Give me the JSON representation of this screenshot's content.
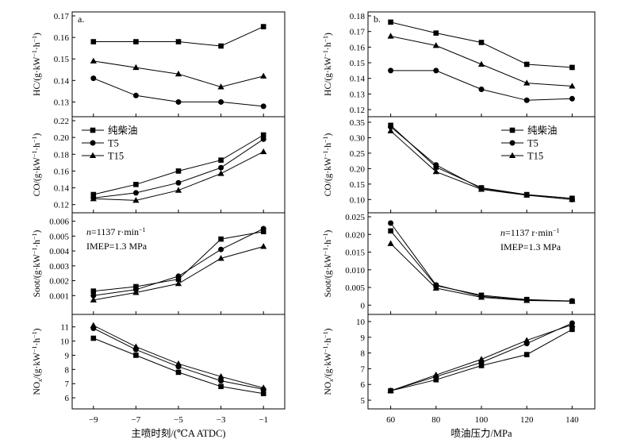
{
  "chart_data": [
    {
      "type": "line",
      "panel": "a",
      "row": 0,
      "panel_label": "a.",
      "ylabel": "HC/(g·kW⁻¹·h⁻¹)",
      "x": [
        -9,
        -7,
        -5,
        -3,
        -1
      ],
      "xlim": [
        -10,
        0
      ],
      "ylim": [
        0.125,
        0.17
      ],
      "yticks": [
        0.13,
        0.14,
        0.15,
        0.16,
        0.17
      ],
      "ytick_labels": [
        "0.13",
        "0.14",
        "0.15",
        "0.16",
        "0.17"
      ],
      "series": [
        {
          "name": "纯柴油",
          "marker": "square",
          "values": [
            0.158,
            0.158,
            0.158,
            0.156,
            0.165
          ]
        },
        {
          "name": "T5",
          "marker": "circle",
          "values": [
            0.141,
            0.133,
            0.13,
            0.13,
            0.128
          ]
        },
        {
          "name": "T15",
          "marker": "triangle",
          "values": [
            0.149,
            0.146,
            0.143,
            0.137,
            0.142
          ]
        }
      ]
    },
    {
      "type": "line",
      "panel": "a",
      "row": 1,
      "ylabel": "CO/(g·kW⁻¹·h⁻¹)",
      "x": [
        -9,
        -7,
        -5,
        -3,
        -1
      ],
      "xlim": [
        -10,
        0
      ],
      "ylim": [
        0.115,
        0.22
      ],
      "yticks": [
        0.12,
        0.14,
        0.16,
        0.18,
        0.2,
        0.22
      ],
      "ytick_labels": [
        "0.12",
        "0.14",
        "0.16",
        "0.18",
        "0.20",
        "0.22"
      ],
      "legend": [
        "纯柴油",
        "T5",
        "T15"
      ],
      "legend_position": "top-left",
      "series": [
        {
          "name": "纯柴油",
          "marker": "square",
          "values": [
            0.132,
            0.144,
            0.16,
            0.173,
            0.203
          ]
        },
        {
          "name": "T5",
          "marker": "circle",
          "values": [
            0.128,
            0.134,
            0.146,
            0.164,
            0.198
          ]
        },
        {
          "name": "T15",
          "marker": "triangle",
          "values": [
            0.127,
            0.125,
            0.137,
            0.157,
            0.183
          ]
        }
      ]
    },
    {
      "type": "line",
      "panel": "a",
      "row": 2,
      "ylabel": "Soot/(g·kW⁻¹·h⁻¹)",
      "x": [
        -9,
        -7,
        -5,
        -3,
        -1
      ],
      "xlim": [
        -10,
        0
      ],
      "ylim": [
        0,
        0.0063
      ],
      "yticks": [
        0.001,
        0.002,
        0.003,
        0.004,
        0.005,
        0.006
      ],
      "ytick_labels": [
        "0.001",
        "0.002",
        "0.003",
        "0.004",
        "0.005",
        "0.006"
      ],
      "annotation": [
        "n=1137 r·min⁻¹",
        "IMEP=1.3 MPa"
      ],
      "series": [
        {
          "name": "纯柴油",
          "marker": "square",
          "values": [
            0.0013,
            0.0016,
            0.0021,
            0.0048,
            0.0053
          ]
        },
        {
          "name": "T5",
          "marker": "circle",
          "values": [
            0.001,
            0.0014,
            0.0023,
            0.0041,
            0.0055
          ]
        },
        {
          "name": "T15",
          "marker": "triangle",
          "values": [
            0.0007,
            0.0012,
            0.0018,
            0.0035,
            0.0043
          ]
        }
      ]
    },
    {
      "type": "line",
      "panel": "a",
      "row": 3,
      "ylabel": "NOx/(g·kW⁻¹·h⁻¹)",
      "xlabel": "主喷时刻/(℃A ATDC)",
      "x": [
        -9,
        -7,
        -5,
        -3,
        -1
      ],
      "xlim": [
        -10,
        0
      ],
      "xticks": [
        -9,
        -7,
        -5,
        -3,
        -1
      ],
      "xtick_labels": [
        "−9",
        "−7",
        "−5",
        "−3",
        "−1"
      ],
      "ylim": [
        5.5,
        11.6
      ],
      "yticks": [
        6,
        7,
        8,
        9,
        10,
        11
      ],
      "ytick_labels": [
        "6",
        "7",
        "8",
        "9",
        "10",
        "11"
      ],
      "series": [
        {
          "name": "纯柴油",
          "marker": "square",
          "values": [
            10.2,
            9.0,
            7.8,
            6.8,
            6.3
          ]
        },
        {
          "name": "T5",
          "marker": "circle",
          "values": [
            10.9,
            9.4,
            8.2,
            7.2,
            6.6
          ]
        },
        {
          "name": "T15",
          "marker": "triangle",
          "values": [
            11.1,
            9.6,
            8.4,
            7.5,
            6.7
          ]
        }
      ]
    },
    {
      "type": "line",
      "panel": "b",
      "row": 0,
      "panel_label": "b.",
      "ylabel": "HC/(g·kW⁻¹·h⁻¹)",
      "x": [
        60,
        80,
        100,
        120,
        140
      ],
      "xlim": [
        50,
        150
      ],
      "ylim": [
        0.118,
        0.18
      ],
      "yticks": [
        0.12,
        0.13,
        0.14,
        0.15,
        0.16,
        0.17,
        0.18
      ],
      "ytick_labels": [
        "0.12",
        "0.13",
        "0.14",
        "0.15",
        "0.16",
        "0.17",
        "0.18"
      ],
      "series": [
        {
          "name": "纯柴油",
          "marker": "square",
          "values": [
            0.176,
            0.169,
            0.163,
            0.149,
            0.147
          ]
        },
        {
          "name": "T5",
          "marker": "circle",
          "values": [
            0.145,
            0.145,
            0.133,
            0.126,
            0.127
          ]
        },
        {
          "name": "T15",
          "marker": "triangle",
          "values": [
            0.167,
            0.161,
            0.149,
            0.137,
            0.135
          ]
        }
      ]
    },
    {
      "type": "line",
      "panel": "b",
      "row": 1,
      "ylabel": "CO/(g·kW⁻¹·h⁻¹)",
      "x": [
        60,
        80,
        100,
        120,
        140
      ],
      "xlim": [
        50,
        150
      ],
      "ylim": [
        0.07,
        0.355
      ],
      "yticks": [
        0.1,
        0.15,
        0.2,
        0.25,
        0.3,
        0.35
      ],
      "ytick_labels": [
        "0.10",
        "0.15",
        "0.20",
        "0.25",
        "0.30",
        "0.35"
      ],
      "legend": [
        "纯柴油",
        "T5",
        "T15"
      ],
      "legend_position": "top-right",
      "series": [
        {
          "name": "纯柴油",
          "marker": "square",
          "values": [
            0.34,
            0.205,
            0.138,
            0.116,
            0.104
          ]
        },
        {
          "name": "T5",
          "marker": "circle",
          "values": [
            0.335,
            0.212,
            0.135,
            0.115,
            0.1
          ]
        },
        {
          "name": "T15",
          "marker": "triangle",
          "values": [
            0.322,
            0.19,
            0.133,
            0.114,
            0.1
          ]
        }
      ]
    },
    {
      "type": "line",
      "panel": "b",
      "row": 2,
      "ylabel": "Soot/(g·kW⁻¹·h⁻¹)",
      "x": [
        60,
        80,
        100,
        120,
        140
      ],
      "xlim": [
        50,
        150
      ],
      "ylim": [
        -0.0015,
        0.025
      ],
      "yticks": [
        0,
        0.005,
        0.01,
        0.015,
        0.02,
        0.025
      ],
      "ytick_labels": [
        "0",
        "0.005",
        "0.010",
        "0.015",
        "0.020",
        "0.025"
      ],
      "annotation": [
        "n=1137 r·min⁻¹",
        "IMEP=1.3 MPa"
      ],
      "series": [
        {
          "name": "纯柴油",
          "marker": "square",
          "values": [
            0.021,
            0.0055,
            0.0028,
            0.0016,
            0.0011
          ]
        },
        {
          "name": "T5",
          "marker": "circle",
          "values": [
            0.0232,
            0.0057,
            0.0025,
            0.0014,
            0.0012
          ]
        },
        {
          "name": "T15",
          "marker": "triangle",
          "values": [
            0.0174,
            0.0048,
            0.0022,
            0.0013,
            0.0011
          ]
        }
      ]
    },
    {
      "type": "line",
      "panel": "b",
      "row": 3,
      "ylabel": "NOx/(g·kW⁻¹·h⁻¹)",
      "xlabel": "喷油压力/MPa",
      "x": [
        60,
        80,
        100,
        120,
        140
      ],
      "xlim": [
        50,
        150
      ],
      "xticks": [
        60,
        80,
        100,
        120,
        140
      ],
      "xtick_labels": [
        "60",
        "80",
        "100",
        "120",
        "140"
      ],
      "ylim": [
        4.7,
        10.2
      ],
      "yticks": [
        5,
        6,
        7,
        8,
        9,
        10
      ],
      "ytick_labels": [
        "5",
        "6",
        "7",
        "8",
        "9",
        "10"
      ],
      "series": [
        {
          "name": "纯柴油",
          "marker": "square",
          "values": [
            5.6,
            6.3,
            7.2,
            7.9,
            9.5
          ]
        },
        {
          "name": "T5",
          "marker": "circle",
          "values": [
            5.6,
            6.5,
            7.4,
            8.6,
            9.9
          ]
        },
        {
          "name": "T15",
          "marker": "triangle",
          "values": [
            5.6,
            6.6,
            7.6,
            8.8,
            9.8
          ]
        }
      ]
    }
  ]
}
